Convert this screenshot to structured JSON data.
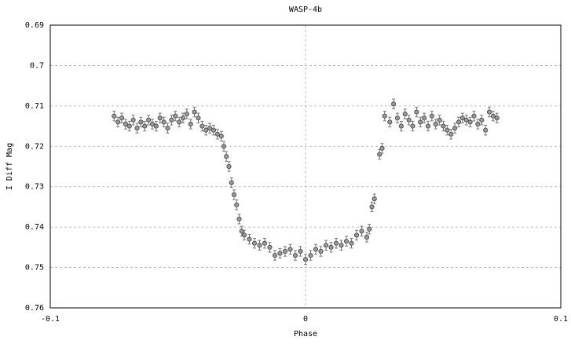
{
  "chart_data": {
    "type": "errorbar-scatter",
    "title": "WASP-4b",
    "x_label": "Phase",
    "y_label": "I Diff Mag",
    "x": [
      -0.075,
      -0.0735,
      -0.072,
      -0.0705,
      -0.069,
      -0.0675,
      -0.066,
      -0.0645,
      -0.063,
      -0.0615,
      -0.06,
      -0.0585,
      -0.057,
      -0.0555,
      -0.054,
      -0.0525,
      -0.051,
      -0.0495,
      -0.048,
      -0.0465,
      -0.045,
      -0.0435,
      -0.042,
      -0.0405,
      -0.039,
      -0.0375,
      -0.036,
      -0.0345,
      -0.033,
      -0.032,
      -0.031,
      -0.03,
      -0.029,
      -0.028,
      -0.027,
      -0.026,
      -0.025,
      -0.024,
      -0.022,
      -0.02,
      -0.018,
      -0.016,
      -0.014,
      -0.012,
      -0.01,
      -0.008,
      -0.006,
      -0.004,
      -0.002,
      0,
      0.002,
      0.004,
      0.006,
      0.008,
      0.01,
      0.012,
      0.014,
      0.016,
      0.018,
      0.02,
      0.022,
      0.024,
      0.025,
      0.026,
      0.027,
      0.029,
      0.03,
      0.031,
      0.033,
      0.0345,
      0.036,
      0.0375,
      0.039,
      0.0405,
      0.042,
      0.0435,
      0.045,
      0.0465,
      0.048,
      0.0495,
      0.051,
      0.0525,
      0.054,
      0.0555,
      0.057,
      0.0585,
      0.06,
      0.0615,
      0.063,
      0.0645,
      0.066,
      0.0675,
      0.069,
      0.0705,
      0.072,
      0.0735,
      0.075
    ],
    "values": [
      0.7125,
      0.714,
      0.713,
      0.7145,
      0.715,
      0.7135,
      0.7155,
      0.714,
      0.715,
      0.7135,
      0.7145,
      0.715,
      0.713,
      0.714,
      0.7155,
      0.7135,
      0.7125,
      0.714,
      0.713,
      0.712,
      0.7145,
      0.7115,
      0.713,
      0.715,
      0.716,
      0.7155,
      0.716,
      0.717,
      0.7175,
      0.72,
      0.7225,
      0.725,
      0.729,
      0.732,
      0.7345,
      0.738,
      0.741,
      0.742,
      0.743,
      0.744,
      0.7445,
      0.744,
      0.745,
      0.747,
      0.7465,
      0.746,
      0.7455,
      0.747,
      0.746,
      0.748,
      0.747,
      0.7455,
      0.746,
      0.7445,
      0.745,
      0.744,
      0.7445,
      0.7435,
      0.744,
      0.742,
      0.741,
      0.7425,
      0.7405,
      0.735,
      0.733,
      0.722,
      0.7205,
      0.7125,
      0.714,
      0.7095,
      0.713,
      0.715,
      0.712,
      0.7135,
      0.715,
      0.7115,
      0.714,
      0.713,
      0.715,
      0.7125,
      0.7145,
      0.7135,
      0.715,
      0.716,
      0.717,
      0.7155,
      0.714,
      0.713,
      0.7135,
      0.714,
      0.7125,
      0.7145,
      0.7135,
      0.716,
      0.7115,
      0.7125,
      0.713
    ],
    "error": 0.0012,
    "color": "#555555",
    "xlim": [
      -0.1,
      0.1
    ],
    "xticks": [
      -0.1,
      0,
      0.1
    ],
    "ylim": [
      0.69,
      0.76
    ],
    "y_inverted": true,
    "yticks": [
      0.69,
      0.7,
      0.71,
      0.72,
      0.73,
      0.74,
      0.75,
      0.76
    ],
    "grid": true
  }
}
